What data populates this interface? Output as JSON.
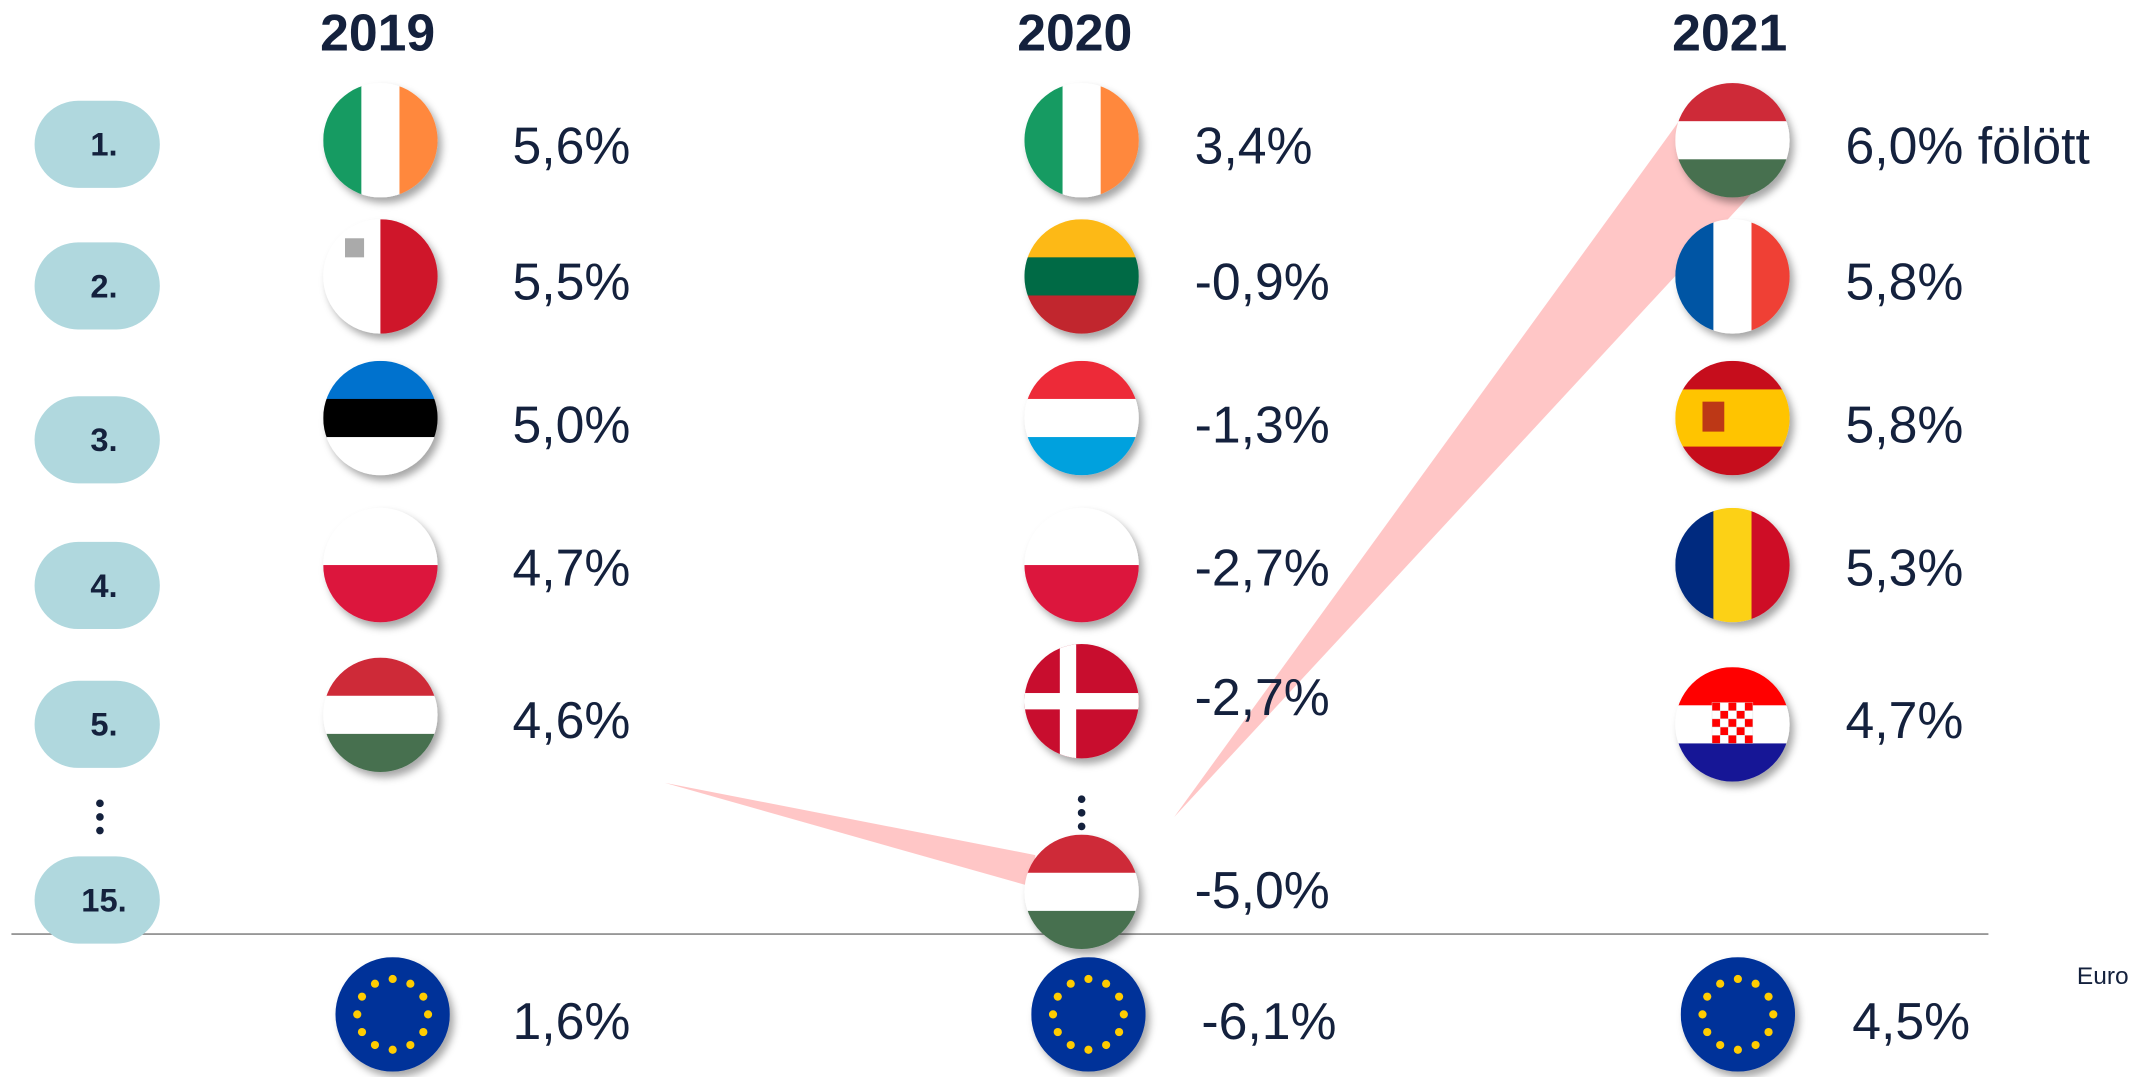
{
  "years": [
    "2019",
    "2020",
    "2021"
  ],
  "ranks": [
    "1.",
    "2.",
    "3.",
    "4.",
    "5.",
    "15."
  ],
  "columns": [
    {
      "values": [
        "5,6%",
        "5,5%",
        "5,0%",
        "4,7%",
        "4,6%"
      ]
    },
    {
      "values": [
        "3,4%",
        "-0,9%",
        "-1,3%",
        "-2,7%",
        "-2,7%",
        "-5,0%"
      ]
    },
    {
      "values": [
        "6,0% fölött",
        "5,8%",
        "5,8%",
        "5,3%",
        "4,7%"
      ]
    }
  ],
  "eu": [
    "1,6%",
    "-6,1%",
    "4,5%"
  ],
  "source": "Euro"
}
